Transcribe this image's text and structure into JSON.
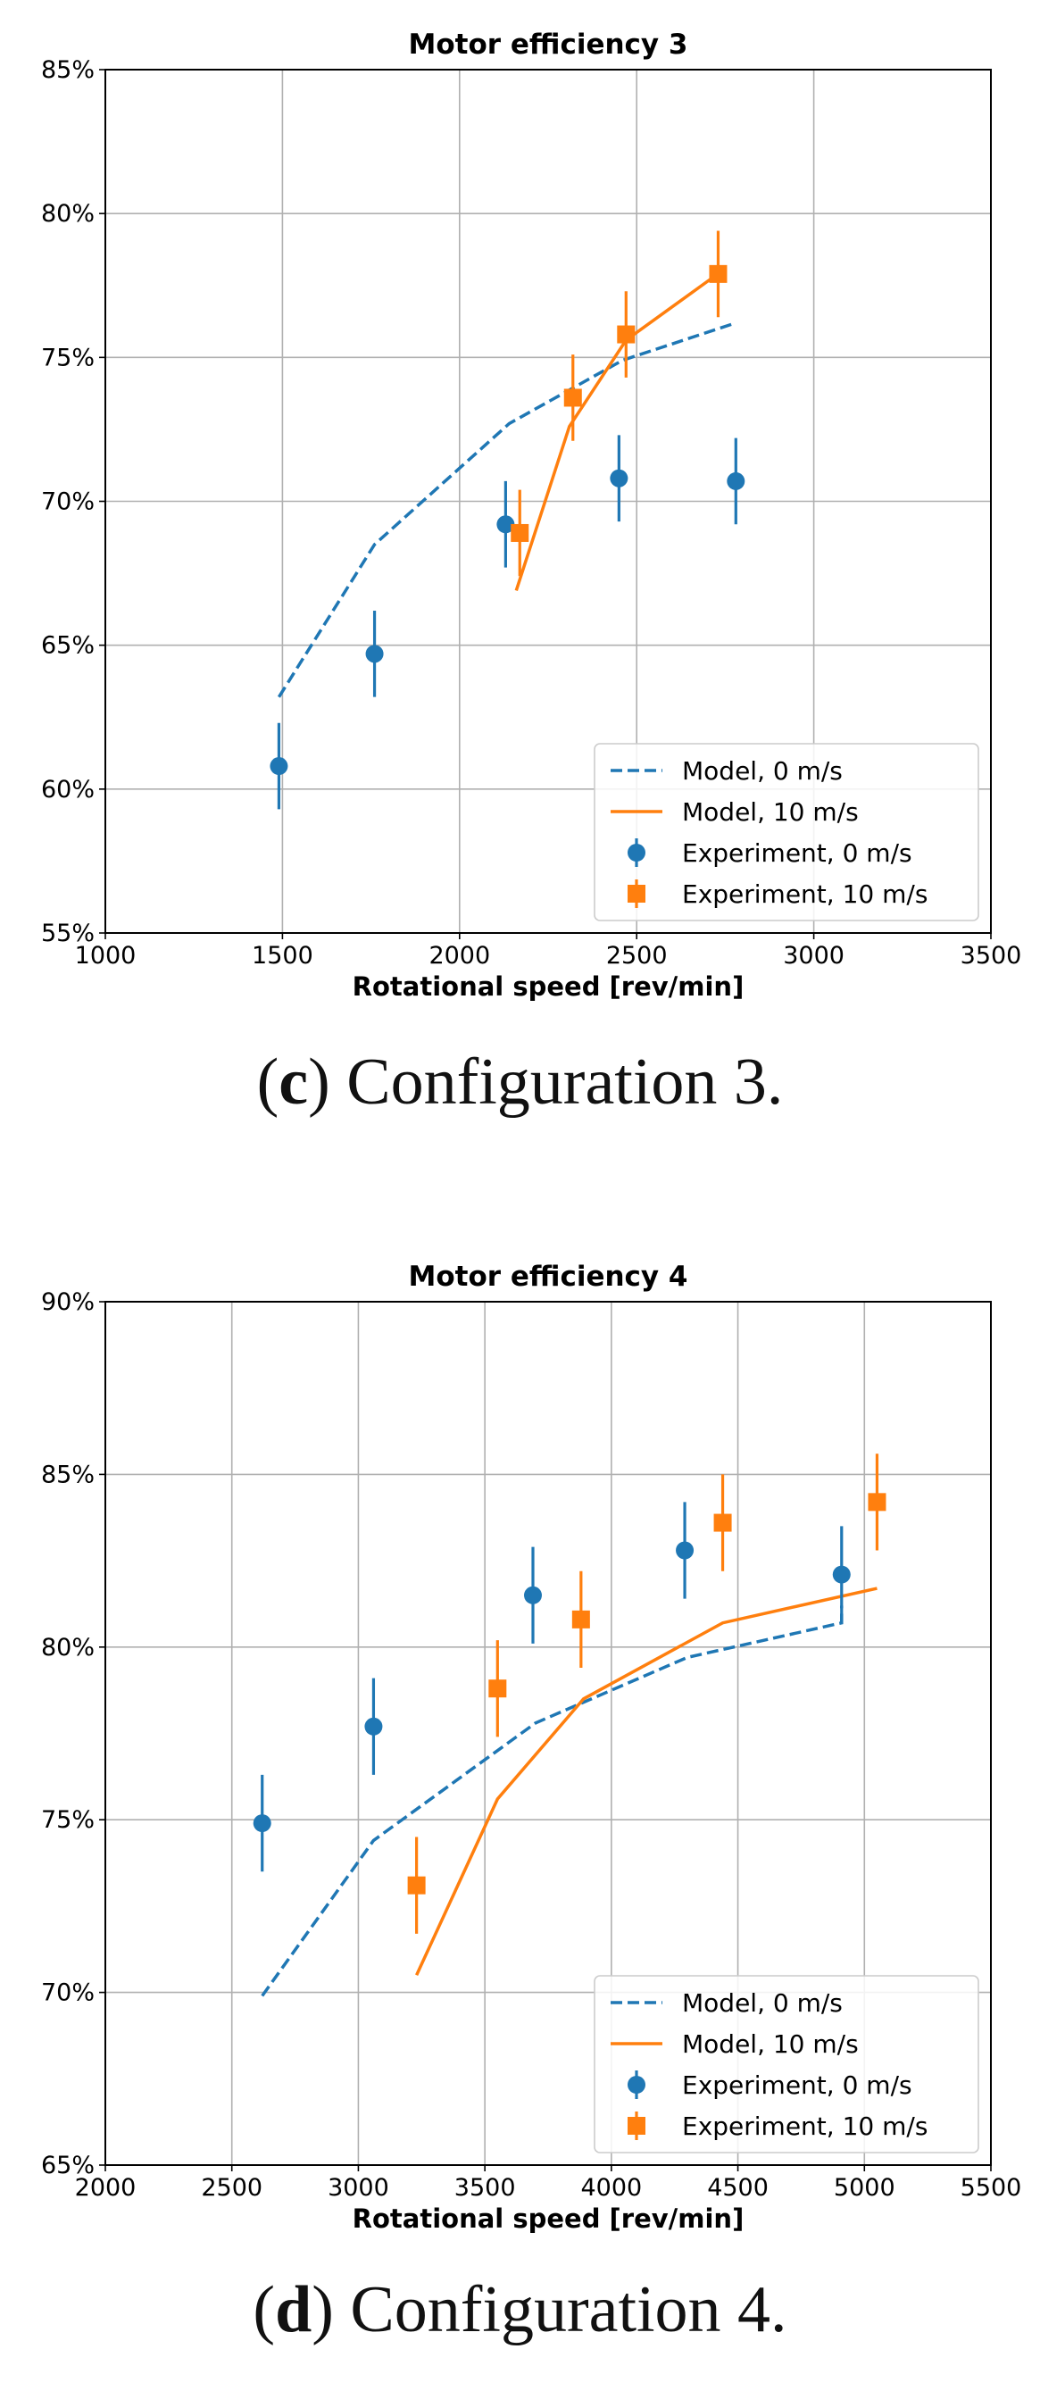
{
  "chart_data": [
    {
      "type": "line",
      "title": "Motor efficiency 3",
      "xlabel": "Rotational speed [rev/min]",
      "ylabel": "",
      "xlim": [
        1000,
        3500
      ],
      "ylim": [
        55,
        85
      ],
      "xticks": [
        1000,
        1500,
        2000,
        2500,
        3000,
        3500
      ],
      "yticks": [
        55,
        60,
        65,
        70,
        75,
        80,
        85
      ],
      "xtick_labels": [
        "1000",
        "1500",
        "2000",
        "2500",
        "3000",
        "3500"
      ],
      "ytick_labels": [
        "55%",
        "60%",
        "65%",
        "70%",
        "75%",
        "80%",
        "85%"
      ],
      "grid": true,
      "legend_position": "lower-right",
      "series": [
        {
          "name": "Model, 0 m/s",
          "kind": "line",
          "style": "dashed",
          "color": "#1f77b4",
          "x": [
            1490,
            1760,
            2140,
            2460,
            2780
          ],
          "y": [
            63.2,
            68.5,
            72.7,
            74.9,
            76.2
          ]
        },
        {
          "name": "Model, 10 m/s",
          "kind": "line",
          "style": "solid",
          "color": "#ff7f0e",
          "x": [
            2160,
            2310,
            2470,
            2740
          ],
          "y": [
            66.9,
            72.6,
            75.6,
            78.0
          ]
        },
        {
          "name": "Experiment, 0 m/s",
          "kind": "errorbar",
          "marker": "circle",
          "color": "#1f77b4",
          "x": [
            1490,
            1760,
            2130,
            2450,
            2780
          ],
          "y": [
            60.8,
            64.7,
            69.2,
            70.8,
            70.7
          ],
          "err": [
            1.5,
            1.5,
            1.5,
            1.5,
            1.5
          ]
        },
        {
          "name": "Experiment, 10 m/s",
          "kind": "errorbar",
          "marker": "square",
          "color": "#ff7f0e",
          "x": [
            2170,
            2320,
            2470,
            2730
          ],
          "y": [
            68.9,
            73.6,
            75.8,
            77.9
          ],
          "err": [
            1.5,
            1.5,
            1.5,
            1.5
          ]
        }
      ],
      "caption_label": "c",
      "caption_text": " Configuration 3."
    },
    {
      "type": "line",
      "title": "Motor efficiency 4",
      "xlabel": "Rotational speed [rev/min]",
      "ylabel": "",
      "xlim": [
        2000,
        5500
      ],
      "ylim": [
        65,
        90
      ],
      "xticks": [
        2000,
        2500,
        3000,
        3500,
        4000,
        4500,
        5000,
        5500
      ],
      "yticks": [
        65,
        70,
        75,
        80,
        85,
        90
      ],
      "xtick_labels": [
        "2000",
        "2500",
        "3000",
        "3500",
        "4000",
        "4500",
        "5000",
        "5500"
      ],
      "ytick_labels": [
        "65%",
        "70%",
        "75%",
        "80%",
        "85%",
        "90%"
      ],
      "grid": true,
      "legend_position": "lower-right",
      "series": [
        {
          "name": "Model, 0 m/s",
          "kind": "line",
          "style": "dashed",
          "color": "#1f77b4",
          "x": [
            2620,
            3060,
            3700,
            4300,
            4910,
            4910
          ],
          "y": [
            69.9,
            74.4,
            77.8,
            79.7,
            80.7,
            81.2
          ]
        },
        {
          "name": "Model, 10 m/s",
          "kind": "line",
          "style": "solid",
          "color": "#ff7f0e",
          "x": [
            3230,
            3550,
            3890,
            4440,
            5050
          ],
          "y": [
            70.5,
            75.6,
            78.5,
            80.7,
            81.7
          ]
        },
        {
          "name": "Experiment, 0 m/s",
          "kind": "errorbar",
          "marker": "circle",
          "color": "#1f77b4",
          "x": [
            2620,
            3060,
            3690,
            4290,
            4910
          ],
          "y": [
            74.9,
            77.7,
            81.5,
            82.8,
            82.1
          ],
          "err": [
            1.4,
            1.4,
            1.4,
            1.4,
            1.4
          ]
        },
        {
          "name": "Experiment, 10 m/s",
          "kind": "errorbar",
          "marker": "square",
          "color": "#ff7f0e",
          "x": [
            3230,
            3550,
            3880,
            4440,
            5050
          ],
          "y": [
            73.1,
            78.8,
            80.8,
            83.6,
            84.2
          ],
          "err": [
            1.4,
            1.4,
            1.4,
            1.4,
            1.4
          ]
        }
      ],
      "caption_label": "d",
      "caption_text": " Configuration 4."
    }
  ]
}
